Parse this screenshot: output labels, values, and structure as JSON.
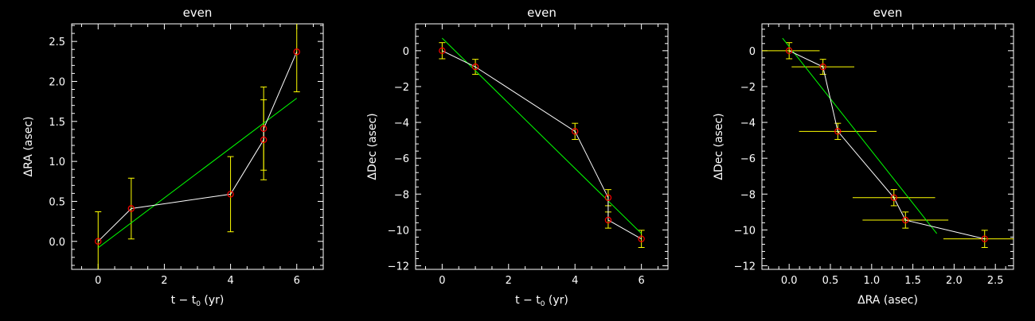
{
  "chart_data": [
    {
      "type": "scatter",
      "title": "even",
      "xlabel": "t − t",
      "xlabel_sub": "0",
      "xlabel_tail": " (yr)",
      "ylabel": "ΔRA (asec)",
      "xlim": [
        -0.8,
        6.8
      ],
      "ylim": [
        -0.35,
        2.72
      ],
      "xticks": [
        0,
        2,
        4,
        6
      ],
      "yticks": [
        0.0,
        0.5,
        1.0,
        1.5,
        2.0,
        2.5
      ],
      "xtick_labels": [
        "0",
        "2",
        "4",
        "6"
      ],
      "ytick_labels": [
        "0.0",
        "0.5",
        "1.0",
        "1.5",
        "2.0",
        "2.5"
      ],
      "points": [
        {
          "x": 0,
          "y": 0.0,
          "yerr": 0.37,
          "xerr": 0
        },
        {
          "x": 1,
          "y": 0.41,
          "yerr": 0.38,
          "xerr": 0
        },
        {
          "x": 4,
          "y": 0.59,
          "yerr": 0.47,
          "xerr": 0
        },
        {
          "x": 5,
          "y": 1.27,
          "yerr": 0.5,
          "xerr": 0
        },
        {
          "x": 5,
          "y": 1.41,
          "yerr": 0.52,
          "xerr": 0
        },
        {
          "x": 6,
          "y": 2.37,
          "yerr": 0.5,
          "xerr": 0
        }
      ],
      "fit": {
        "x": [
          0,
          6
        ],
        "y": [
          -0.08,
          1.79
        ]
      },
      "colors": {
        "data": "#ff0000",
        "line": "#ffffff",
        "err": "#ffff00",
        "fit": "#00ff00"
      }
    },
    {
      "type": "scatter",
      "title": "even",
      "xlabel": "t − t",
      "xlabel_sub": "0",
      "xlabel_tail": " (yr)",
      "ylabel": "ΔDec (asec)",
      "xlim": [
        -0.8,
        6.8
      ],
      "ylim": [
        -12.2,
        1.5
      ],
      "xticks": [
        0,
        2,
        4,
        6
      ],
      "yticks": [
        0,
        -2,
        -4,
        -6,
        -8,
        -10,
        -12
      ],
      "xtick_labels": [
        "0",
        "2",
        "4",
        "6"
      ],
      "ytick_labels": [
        "0",
        "−2",
        "−4",
        "−6",
        "−8",
        "−10",
        "−12"
      ],
      "points": [
        {
          "x": 0,
          "y": 0.0,
          "yerr": 0.45,
          "xerr": 0
        },
        {
          "x": 1,
          "y": -0.9,
          "yerr": 0.42,
          "xerr": 0
        },
        {
          "x": 4,
          "y": -4.5,
          "yerr": 0.45,
          "xerr": 0
        },
        {
          "x": 5,
          "y": -8.2,
          "yerr": 0.45,
          "xerr": 0
        },
        {
          "x": 5,
          "y": -9.45,
          "yerr": 0.45,
          "xerr": 0
        },
        {
          "x": 6,
          "y": -10.5,
          "yerr": 0.48,
          "xerr": 0
        }
      ],
      "fit": {
        "x": [
          0,
          6
        ],
        "y": [
          0.7,
          -10.2
        ]
      },
      "colors": {
        "data": "#ff0000",
        "line": "#ffffff",
        "err": "#ffff00",
        "fit": "#00ff00"
      }
    },
    {
      "type": "scatter",
      "title": "even",
      "xlabel": "ΔRA (asec)",
      "xlabel_sub": "",
      "xlabel_tail": "",
      "ylabel": "ΔDec (asec)",
      "xlim": [
        -0.33,
        2.72
      ],
      "ylim": [
        -12.2,
        1.5
      ],
      "xticks": [
        0.0,
        0.5,
        1.0,
        1.5,
        2.0,
        2.5
      ],
      "yticks": [
        0,
        -2,
        -4,
        -6,
        -8,
        -10,
        -12
      ],
      "xtick_labels": [
        "0.0",
        "0.5",
        "1.0",
        "1.5",
        "2.0",
        "2.5"
      ],
      "ytick_labels": [
        "0",
        "−2",
        "−4",
        "−6",
        "−8",
        "−10",
        "−12"
      ],
      "points": [
        {
          "x": 0.0,
          "y": 0.0,
          "yerr": 0.45,
          "xerr": 0.37
        },
        {
          "x": 0.41,
          "y": -0.9,
          "yerr": 0.42,
          "xerr": 0.38
        },
        {
          "x": 0.59,
          "y": -4.5,
          "yerr": 0.45,
          "xerr": 0.47
        },
        {
          "x": 1.27,
          "y": -8.2,
          "yerr": 0.45,
          "xerr": 0.5
        },
        {
          "x": 1.41,
          "y": -9.45,
          "yerr": 0.45,
          "xerr": 0.52
        },
        {
          "x": 2.37,
          "y": -10.5,
          "yerr": 0.48,
          "xerr": 0.5
        }
      ],
      "fit": {
        "x": [
          -0.08,
          1.79
        ],
        "y": [
          0.7,
          -10.2
        ]
      },
      "colors": {
        "data": "#ff0000",
        "line": "#ffffff",
        "err": "#ffff00",
        "fit": "#00ff00"
      }
    }
  ]
}
